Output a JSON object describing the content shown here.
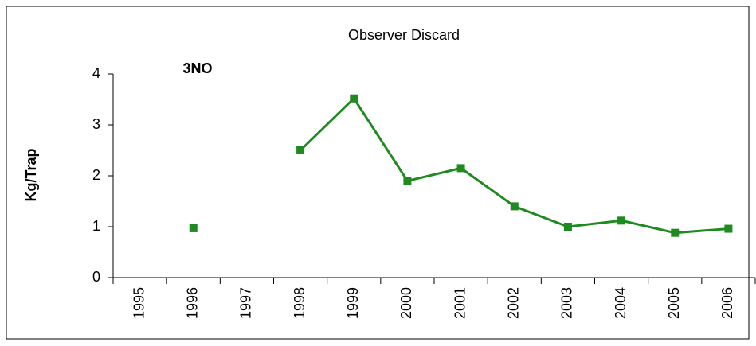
{
  "chart_data": {
    "type": "line",
    "title": "Observer Discard",
    "annotation": "3NO",
    "y_label": "Kg/Trap",
    "categories": [
      "1995",
      "1996",
      "1997",
      "1998",
      "1999",
      "2000",
      "2001",
      "2002",
      "2003",
      "2004",
      "2005",
      "2006"
    ],
    "series": [
      {
        "name": "3NO",
        "color": "#1f8a1f",
        "values": [
          null,
          0.97,
          null,
          2.5,
          3.52,
          1.9,
          2.15,
          1.4,
          1.0,
          1.12,
          0.88,
          0.96
        ]
      }
    ],
    "ylim": [
      0,
      4
    ],
    "yticks": [
      0,
      1,
      2,
      3,
      4
    ],
    "grid": false
  }
}
